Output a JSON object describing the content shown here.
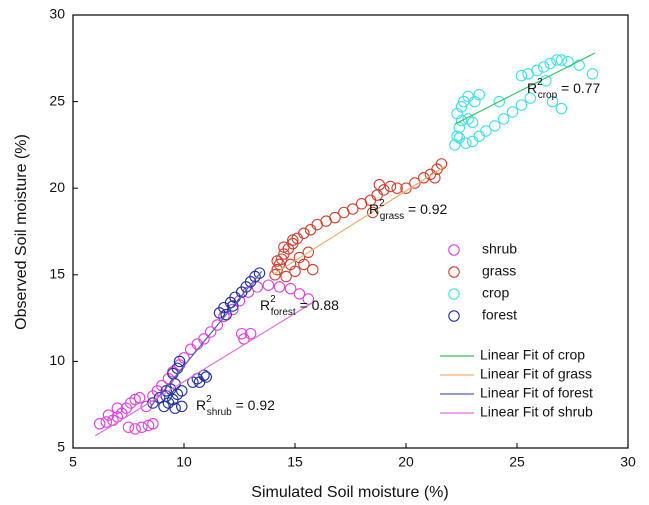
{
  "chart_data": {
    "type": "scatter",
    "xlabel": "Simulated Soil moisture (%)",
    "ylabel": "Observed Soil moisture (%)",
    "xlim": [
      5,
      30
    ],
    "ylim": [
      5,
      30
    ],
    "xticks": [
      5,
      10,
      15,
      20,
      25,
      30
    ],
    "yticks": [
      5,
      10,
      15,
      20,
      25,
      30
    ],
    "series": [
      {
        "name": "shrub",
        "color": "#e040e0",
        "x": [
          6.2,
          6.5,
          6.8,
          7.0,
          7.2,
          7.4,
          7.6,
          7.8,
          8.0,
          7.5,
          7.8,
          8.1,
          8.4,
          8.6,
          8.3,
          8.6,
          8.8,
          9.0,
          9.3,
          9.5,
          9.8,
          10.0,
          10.3,
          10.6,
          10.9,
          11.2,
          11.5,
          11.8,
          12.2,
          12.5,
          12.9,
          13.3,
          13.8,
          14.3,
          14.8,
          15.2,
          15.6,
          12.7,
          13.0,
          12.6,
          7.0,
          6.6
        ],
        "y": [
          6.4,
          6.5,
          6.6,
          6.8,
          7.0,
          7.3,
          7.6,
          7.8,
          7.9,
          6.2,
          6.1,
          6.2,
          6.3,
          6.4,
          7.4,
          8.0,
          8.3,
          8.6,
          9.0,
          9.4,
          9.8,
          10.2,
          10.7,
          11.0,
          11.3,
          11.7,
          12.1,
          12.6,
          13.0,
          13.5,
          14.0,
          14.3,
          14.4,
          14.3,
          14.2,
          13.9,
          13.6,
          11.3,
          11.6,
          11.6,
          7.3,
          6.9
        ]
      },
      {
        "name": "grass",
        "color": "#d04030",
        "x": [
          14.1,
          14.2,
          14.3,
          14.4,
          14.5,
          14.7,
          14.9,
          15.1,
          15.4,
          15.7,
          16.0,
          16.4,
          16.8,
          17.2,
          17.6,
          18.0,
          18.4,
          18.7,
          19.0,
          19.3,
          19.6,
          20.0,
          20.4,
          20.8,
          21.1,
          21.4,
          21.6,
          21.3,
          18.8,
          18.5,
          14.6,
          15.0,
          15.4,
          15.8,
          14.8,
          15.2,
          15.6,
          14.5,
          14.9,
          14.2
        ],
        "y": [
          15.0,
          15.3,
          15.6,
          15.9,
          16.2,
          16.5,
          16.8,
          17.1,
          17.4,
          17.6,
          17.9,
          18.1,
          18.3,
          18.6,
          18.8,
          19.1,
          19.3,
          19.6,
          19.9,
          20.1,
          20.0,
          20.0,
          20.3,
          20.6,
          20.8,
          21.1,
          21.4,
          20.6,
          20.2,
          18.6,
          14.9,
          15.2,
          15.6,
          15.3,
          15.6,
          16.0,
          16.3,
          16.6,
          17.0,
          15.8
        ]
      },
      {
        "name": "crop",
        "color": "#40e0e8",
        "x": [
          22.2,
          22.3,
          22.4,
          22.5,
          22.3,
          22.5,
          22.6,
          22.8,
          23.1,
          23.3,
          22.4,
          22.7,
          23.0,
          23.3,
          23.6,
          24.0,
          24.4,
          24.8,
          25.2,
          25.6,
          25.2,
          25.5,
          25.9,
          26.2,
          26.5,
          26.8,
          27.0,
          27.3,
          26.3,
          26.6,
          27.0,
          27.8,
          28.4,
          24.2,
          22.8,
          23.0
        ],
        "y": [
          22.5,
          23.0,
          23.5,
          23.9,
          24.3,
          24.7,
          25.0,
          25.3,
          25.0,
          25.4,
          22.9,
          22.6,
          22.7,
          23.0,
          23.3,
          23.6,
          24.0,
          24.4,
          24.8,
          25.2,
          26.5,
          26.6,
          26.8,
          27.0,
          27.2,
          27.4,
          27.4,
          27.3,
          26.2,
          25.0,
          24.6,
          27.1,
          26.6,
          25.0,
          24.0,
          23.8
        ]
      },
      {
        "name": "forest",
        "color": "#2030a0",
        "x": [
          9.1,
          9.3,
          9.5,
          9.7,
          9.9,
          9.2,
          9.4,
          9.6,
          9.5,
          9.7,
          9.8,
          9.6,
          9.9,
          10.4,
          10.6,
          10.9,
          11.0,
          10.7,
          8.6,
          8.9,
          9.2,
          11.6,
          11.8,
          12.1,
          12.3,
          12.6,
          12.8,
          13.0,
          13.2,
          13.4,
          11.9,
          12.2
        ],
        "y": [
          7.4,
          7.6,
          7.8,
          8.1,
          8.3,
          8.0,
          8.4,
          8.7,
          9.3,
          9.6,
          10.0,
          7.3,
          7.4,
          8.8,
          9.0,
          9.2,
          9.1,
          8.8,
          7.6,
          7.9,
          8.3,
          12.8,
          13.1,
          13.4,
          13.7,
          14.0,
          14.3,
          14.6,
          14.9,
          15.1,
          12.7,
          13.2
        ]
      }
    ],
    "fits": [
      {
        "name": "Linear Fit of crop",
        "color": "#30c060",
        "x": [
          22.2,
          28.5
        ],
        "y": [
          23.7,
          27.8
        ]
      },
      {
        "name": "Linear Fit of grass",
        "color": "#f0b070",
        "x": [
          14.0,
          21.8
        ],
        "y": [
          15.0,
          21.3
        ]
      },
      {
        "name": "Linear Fit of forest",
        "color": "#5060b0",
        "x": [
          8.5,
          13.5
        ],
        "y": [
          7.4,
          15.2
        ]
      },
      {
        "name": "Linear Fit of shrub",
        "color": "#e070e0",
        "x": [
          6.0,
          15.8
        ],
        "y": [
          5.7,
          13.4
        ]
      }
    ],
    "annotations": [
      {
        "base": "R",
        "sup": "2",
        "sub": "crop",
        "text": " = 0.77"
      },
      {
        "base": "R",
        "sup": "2",
        "sub": "grass",
        "text": " = 0.92"
      },
      {
        "base": "R",
        "sup": "2",
        "sub": "forest",
        "text": " = 0.88"
      },
      {
        "base": "R",
        "sup": "2",
        "sub": "shrub",
        "text": " = 0.92"
      }
    ]
  }
}
